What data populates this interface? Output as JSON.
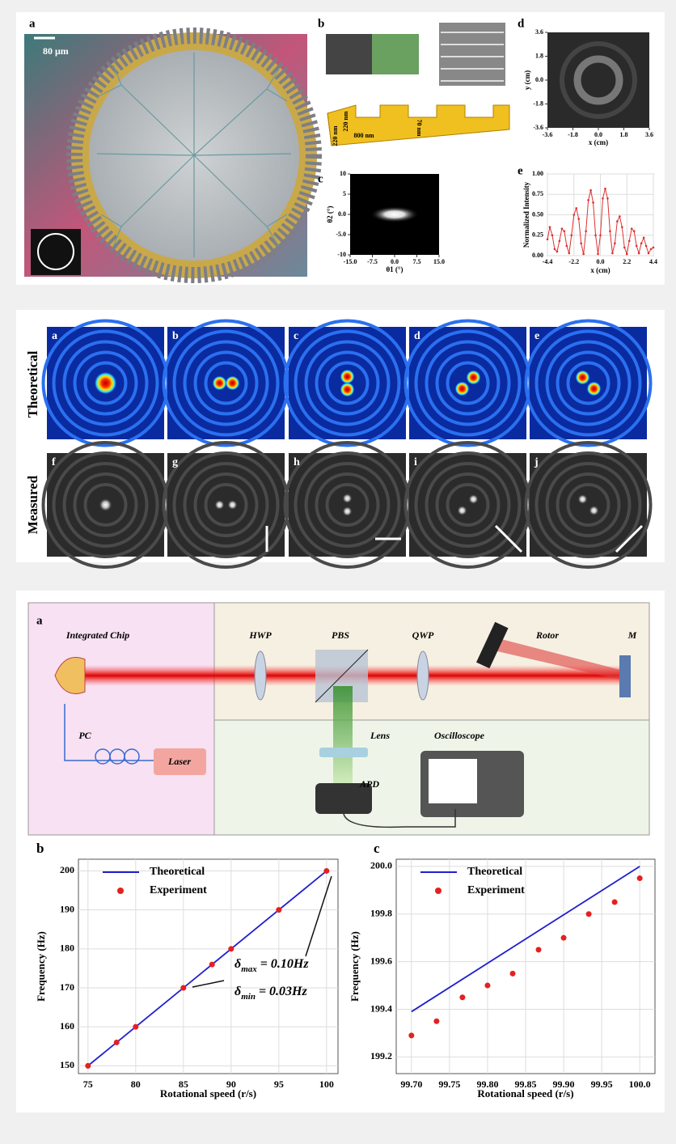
{
  "figure1": {
    "a": {
      "label": "a",
      "scale": "80 μm"
    },
    "b": {
      "label": "b",
      "dims": [
        "800 nm",
        "220 nm",
        "70 nm",
        "220 nm"
      ]
    },
    "c": {
      "label": "c",
      "xlabel": "θ1 (°)",
      "ylabel": "θ2 (°)",
      "xlim": [
        -15,
        15
      ],
      "ylim": [
        -10,
        10
      ],
      "xticks": [
        {
          "value": -15,
          "label": "-15.0"
        },
        -7.5,
        {
          "value": 0,
          "label": "0.0"
        },
        7.5,
        {
          "value": 15,
          "label": "15.0"
        }
      ],
      "yticks": [
        10,
        5,
        {
          "value": 0,
          "label": "0.0"
        },
        {
          "value": -5,
          "label": "-5.0"
        },
        -10
      ]
    },
    "d": {
      "label": "d",
      "xlabel": "x (cm)",
      "ylabel": "y (cm)",
      "xlim": [
        -3.6,
        3.6
      ],
      "ylim": [
        -3.6,
        3.6
      ],
      "xticks": [
        -3.6,
        -1.8,
        {
          "value": 0,
          "label": "0.0"
        },
        1.8,
        3.6
      ],
      "yticks": [
        3.6,
        1.8,
        {
          "value": 0,
          "label": "0.0"
        },
        -1.8,
        -3.6
      ]
    }
  },
  "figure2": {
    "row_labels": [
      "Theoretical",
      "Measured"
    ],
    "panels": [
      "a",
      "b",
      "c",
      "d",
      "e",
      "f",
      "g",
      "h",
      "i",
      "j"
    ]
  },
  "figure3": {
    "label": "a",
    "components": {
      "chip": "Integrated Chip",
      "hwp": "HWP",
      "pbs": "PBS",
      "qwp": "QWP",
      "rotor": "Rotor",
      "mirror": "M",
      "pc": "PC",
      "laser": "Laser",
      "lens": "Lens",
      "oscilloscope": "Oscilloscope",
      "apd": "APD"
    }
  },
  "chart_data": [
    {
      "type": "line",
      "panel": "e",
      "xlabel": "x (cm)",
      "ylabel": "Normalized Intensity",
      "grid": true,
      "xlim": [
        -4.4,
        4.4
      ],
      "ylim": [
        0,
        1
      ],
      "xticks": [
        -4.4,
        -2.2,
        {
          "value": 0,
          "label": "0.0"
        },
        2.2,
        4.4
      ],
      "yticks": [
        {
          "value": 0,
          "label": "0.00"
        },
        {
          "value": 0.25,
          "label": "0.25"
        },
        {
          "value": 0.5,
          "label": "0.50"
        },
        {
          "value": 0.75,
          "label": "0.75"
        },
        {
          "value": 1,
          "label": "1.00"
        }
      ],
      "x": [
        -4.4,
        -4.2,
        -4.0,
        -3.8,
        -3.6,
        -3.4,
        -3.2,
        -3.0,
        -2.8,
        -2.6,
        -2.4,
        -2.2,
        -2.0,
        -1.8,
        -1.6,
        -1.4,
        -1.2,
        -1.0,
        -0.8,
        -0.6,
        -0.4,
        -0.2,
        0.0,
        0.2,
        0.4,
        0.6,
        0.8,
        1.0,
        1.2,
        1.4,
        1.6,
        1.8,
        2.0,
        2.2,
        2.4,
        2.6,
        2.8,
        3.0,
        3.2,
        3.4,
        3.6,
        3.8,
        4.0,
        4.2,
        4.4
      ],
      "series": [
        {
          "color": "#e03030",
          "marker": true,
          "values": [
            0.2,
            0.35,
            0.25,
            0.08,
            0.05,
            0.18,
            0.33,
            0.3,
            0.12,
            0.03,
            0.25,
            0.5,
            0.58,
            0.45,
            0.15,
            0.02,
            0.3,
            0.68,
            0.8,
            0.65,
            0.25,
            0.02,
            0.25,
            0.7,
            0.82,
            0.7,
            0.3,
            0.03,
            0.15,
            0.42,
            0.48,
            0.35,
            0.1,
            0.02,
            0.18,
            0.33,
            0.3,
            0.12,
            0.03,
            0.15,
            0.22,
            0.12,
            0.03,
            0.08,
            0.1
          ]
        }
      ]
    },
    {
      "type": "line",
      "panel": "b",
      "xlabel": "Rotational speed (r/s)",
      "ylabel": "Frequency (Hz)",
      "grid": true,
      "legend": "upper left",
      "xlim": [
        74,
        101.2
      ],
      "ylim": [
        148,
        203
      ],
      "xticks": [
        75,
        80,
        85,
        90,
        95,
        100
      ],
      "yticks": [
        150,
        160,
        170,
        180,
        190,
        200
      ],
      "annotations": [
        {
          "symbol": "δ",
          "sub": "max",
          "text": " = 0.10Hz"
        },
        {
          "symbol": "δ",
          "sub": "min",
          "text": " = 0.03Hz"
        }
      ],
      "series": [
        {
          "name": "Theoretical",
          "type": "line",
          "color": "#1f1fd0",
          "x": [
            75,
            100
          ],
          "values": [
            150,
            200
          ]
        },
        {
          "name": "Experiment",
          "type": "scatter",
          "color": "#e52020",
          "x": [
            75,
            78,
            80,
            85,
            88,
            90,
            95,
            100
          ],
          "values": [
            150,
            156,
            160,
            170,
            176,
            180,
            190,
            200
          ]
        }
      ]
    },
    {
      "type": "line",
      "panel": "c",
      "xlabel": "Rotational speed (r/s)",
      "ylabel": "Frequency (Hz)",
      "grid": true,
      "legend": "upper left",
      "xlim": [
        99.68,
        100.02
      ],
      "ylim": [
        199.13,
        200.03
      ],
      "xticks": [
        {
          "value": 99.7,
          "label": "99.70"
        },
        99.75,
        {
          "value": 99.8,
          "label": "99.80"
        },
        99.85,
        {
          "value": 99.9,
          "label": "99.90"
        },
        99.95,
        {
          "value": 100,
          "label": "100.0"
        }
      ],
      "yticks": [
        199.2,
        199.4,
        199.6,
        199.8,
        {
          "value": 200,
          "label": "200.0"
        }
      ],
      "series": [
        {
          "name": "Theoretical",
          "type": "line",
          "color": "#1f1fd0",
          "x": [
            99.7,
            100
          ],
          "values": [
            199.39,
            200.0
          ]
        },
        {
          "name": "Experiment",
          "type": "scatter",
          "color": "#e52020",
          "x": [
            99.7,
            99.733,
            99.767,
            99.8,
            99.833,
            99.867,
            99.9,
            99.933,
            99.967,
            100
          ],
          "values": [
            199.29,
            199.35,
            199.45,
            199.5,
            199.55,
            199.65,
            199.7,
            199.8,
            199.85,
            199.95
          ]
        }
      ]
    }
  ]
}
